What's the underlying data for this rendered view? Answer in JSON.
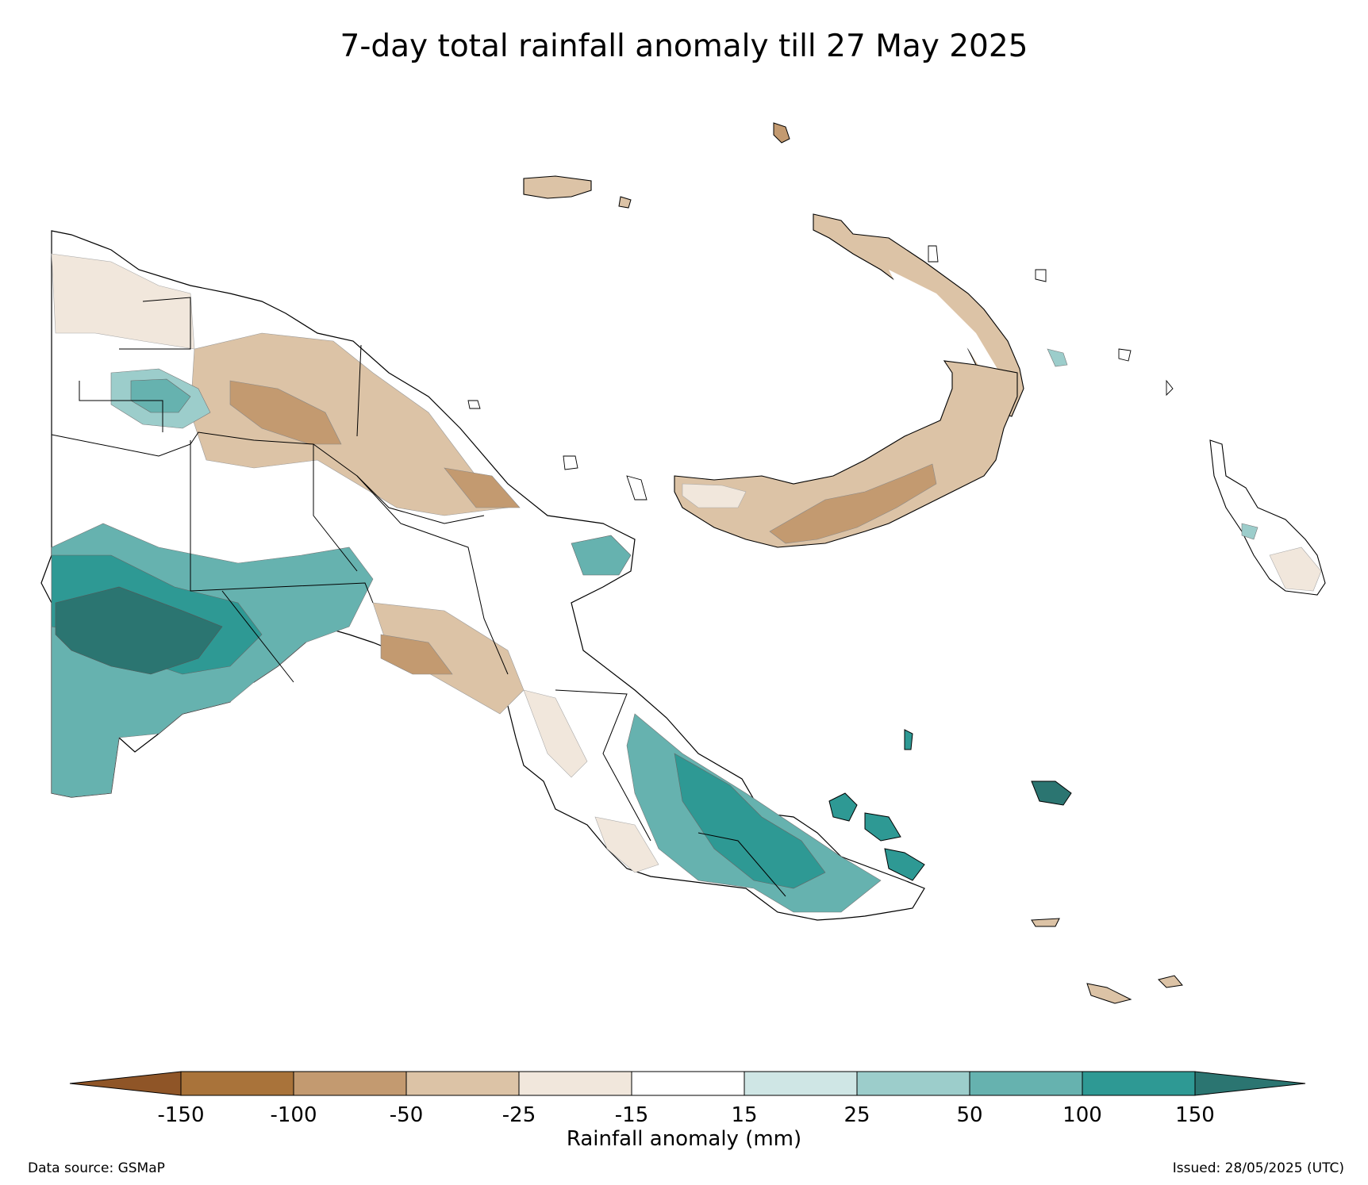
{
  "title": "7-day total rainfall anomaly till 27 May 2025",
  "colorbar": {
    "label": "Rainfall anomaly (mm)",
    "tick_labels": [
      "-150",
      "-100",
      "-50",
      "-25",
      "-15",
      "15",
      "25",
      "50",
      "100",
      "150"
    ],
    "colors": {
      "extend_low": "#8f5527",
      "bins": [
        "#a9733a",
        "#c39a70",
        "#dcc3a6",
        "#f1e7dc",
        "#ffffff",
        "#cfe6e5",
        "#9ccdcb",
        "#66b2af",
        "#2e9994"
      ],
      "extend_high": "#2b7571"
    }
  },
  "footer": {
    "source": "Data source: GSMaP",
    "issued": "Issued: 28/05/2025 (UTC)"
  },
  "map_regions": {
    "land_outline": "#000000",
    "southern_lowlands": "wet",
    "central_highlands": "dry",
    "north_coast": "dry",
    "new_britain": "dry",
    "new_ireland": "dry",
    "bougainville": "near-normal",
    "southeast_peninsula": "wet",
    "milne_bay_islands": "wet"
  }
}
